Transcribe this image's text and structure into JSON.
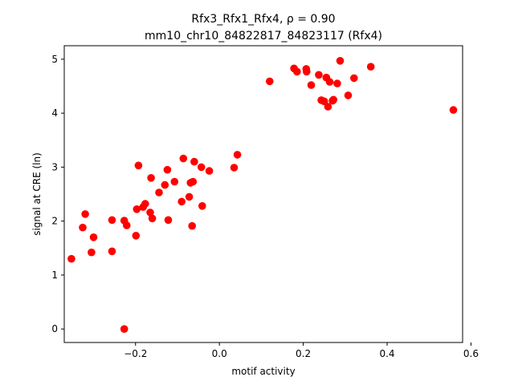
{
  "chart_data": {
    "type": "scatter",
    "title_line1": "Rfx3_Rfx1_Rfx4, ρ = 0.90",
    "title_line2": "mm10_chr10_84822817_84823117 (Rfx4)",
    "xlabel": "motif activity",
    "ylabel": "signal at CRE (ln)",
    "xlim": [
      -0.37,
      0.58
    ],
    "ylim": [
      -0.25,
      5.25
    ],
    "x_ticks": [
      -0.2,
      0.0,
      0.2,
      0.4,
      0.6
    ],
    "x_tick_labels": [
      "−0.2",
      "0.0",
      "0.2",
      "0.4",
      "0.6"
    ],
    "y_ticks": [
      0,
      1,
      2,
      3,
      4,
      5
    ],
    "y_tick_labels": [
      "0",
      "1",
      "2",
      "3",
      "4",
      "5"
    ],
    "marker_color": "#ff0000",
    "grid": false,
    "points": [
      {
        "x": -0.353,
        "y": 1.3
      },
      {
        "x": -0.326,
        "y": 1.88
      },
      {
        "x": -0.32,
        "y": 2.13
      },
      {
        "x": -0.305,
        "y": 1.42
      },
      {
        "x": -0.3,
        "y": 1.7
      },
      {
        "x": -0.256,
        "y": 1.44
      },
      {
        "x": -0.256,
        "y": 2.02
      },
      {
        "x": -0.227,
        "y": 2.01
      },
      {
        "x": -0.227,
        "y": 0.0
      },
      {
        "x": -0.221,
        "y": 1.92
      },
      {
        "x": -0.199,
        "y": 1.73
      },
      {
        "x": -0.197,
        "y": 2.22
      },
      {
        "x": -0.193,
        "y": 3.03
      },
      {
        "x": -0.182,
        "y": 2.26
      },
      {
        "x": -0.177,
        "y": 2.32
      },
      {
        "x": -0.165,
        "y": 2.16
      },
      {
        "x": -0.163,
        "y": 2.8
      },
      {
        "x": -0.16,
        "y": 2.05
      },
      {
        "x": -0.144,
        "y": 2.53
      },
      {
        "x": -0.13,
        "y": 2.67
      },
      {
        "x": -0.124,
        "y": 2.95
      },
      {
        "x": -0.122,
        "y": 2.02
      },
      {
        "x": -0.107,
        "y": 2.73
      },
      {
        "x": -0.09,
        "y": 2.36
      },
      {
        "x": -0.086,
        "y": 3.16
      },
      {
        "x": -0.072,
        "y": 2.45
      },
      {
        "x": -0.069,
        "y": 2.71
      },
      {
        "x": -0.065,
        "y": 1.91
      },
      {
        "x": -0.063,
        "y": 2.73
      },
      {
        "x": -0.06,
        "y": 3.1
      },
      {
        "x": -0.043,
        "y": 3.0
      },
      {
        "x": -0.041,
        "y": 2.28
      },
      {
        "x": -0.024,
        "y": 2.93
      },
      {
        "x": 0.035,
        "y": 2.99
      },
      {
        "x": 0.043,
        "y": 3.23
      },
      {
        "x": 0.12,
        "y": 4.59
      },
      {
        "x": 0.178,
        "y": 4.83
      },
      {
        "x": 0.185,
        "y": 4.77
      },
      {
        "x": 0.207,
        "y": 4.82
      },
      {
        "x": 0.208,
        "y": 4.77
      },
      {
        "x": 0.219,
        "y": 4.52
      },
      {
        "x": 0.237,
        "y": 4.71
      },
      {
        "x": 0.243,
        "y": 4.24
      },
      {
        "x": 0.25,
        "y": 4.22
      },
      {
        "x": 0.255,
        "y": 4.66
      },
      {
        "x": 0.259,
        "y": 4.12
      },
      {
        "x": 0.263,
        "y": 4.58
      },
      {
        "x": 0.27,
        "y": 4.23
      },
      {
        "x": 0.272,
        "y": 4.25
      },
      {
        "x": 0.281,
        "y": 4.55
      },
      {
        "x": 0.288,
        "y": 4.97
      },
      {
        "x": 0.307,
        "y": 4.33
      },
      {
        "x": 0.321,
        "y": 4.65
      },
      {
        "x": 0.361,
        "y": 4.86
      },
      {
        "x": 0.558,
        "y": 4.06
      }
    ]
  }
}
